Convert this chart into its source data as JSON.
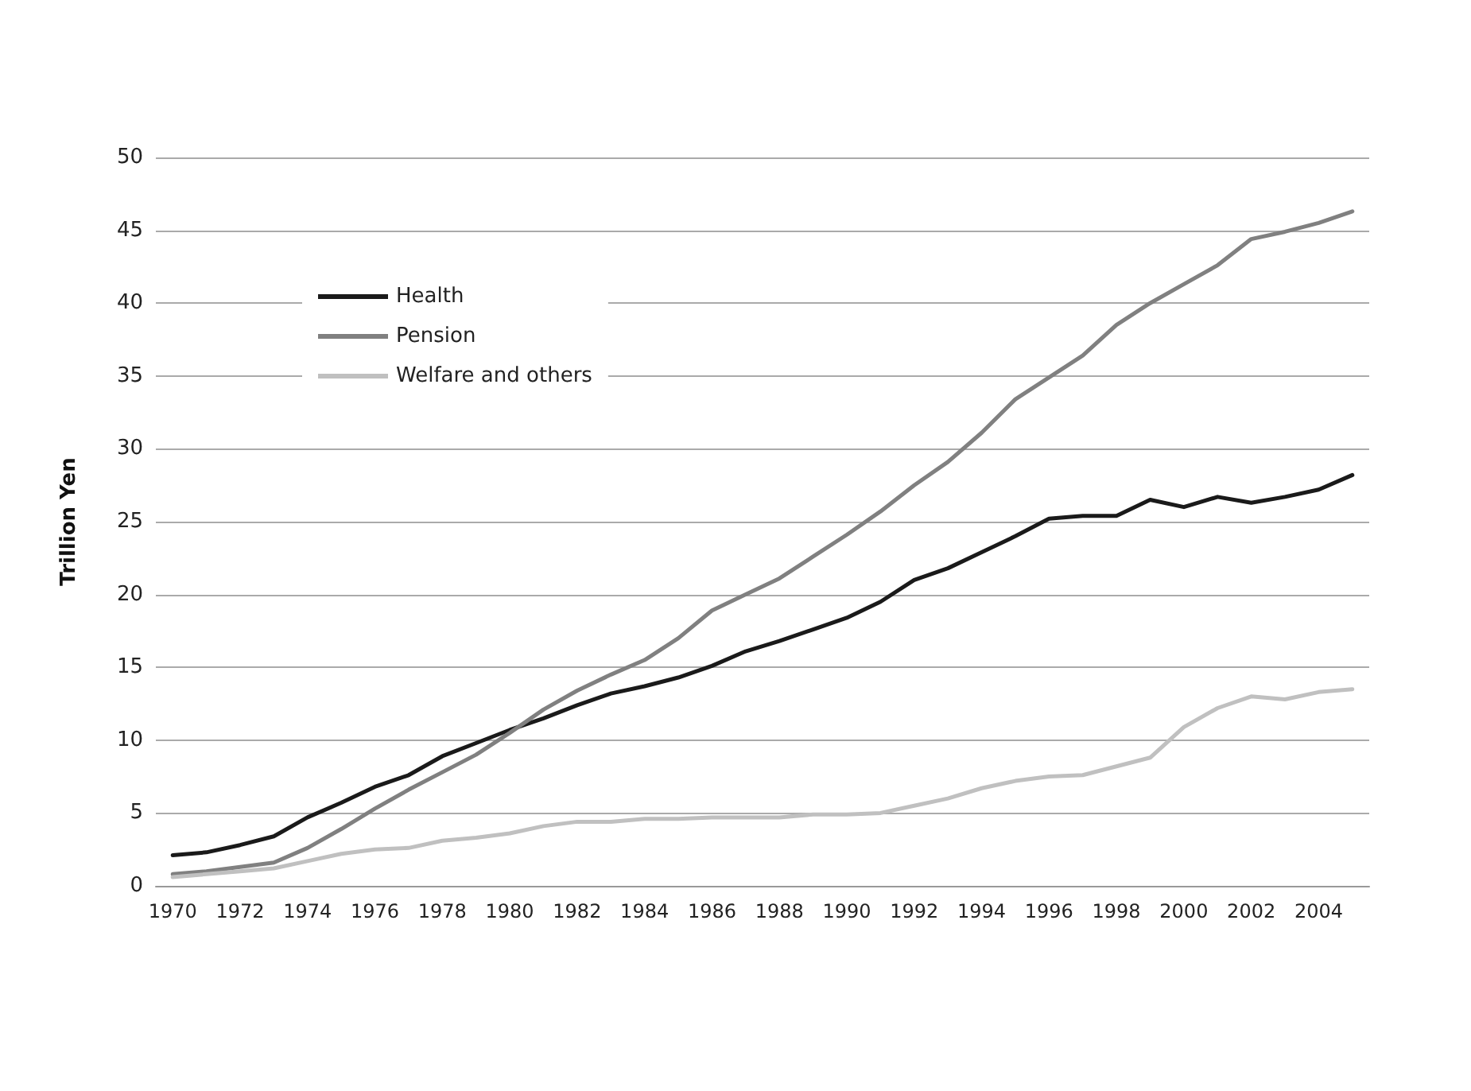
{
  "chart_data": {
    "type": "line",
    "ylabel": "Trillion Yen",
    "categories": [
      "1970",
      null,
      "1972",
      null,
      "1974",
      null,
      "1976",
      null,
      "1978",
      null,
      "1980",
      null,
      "1982",
      null,
      "1984",
      null,
      "1986",
      null,
      "1988",
      null,
      "1990",
      null,
      "1992",
      null,
      "1994",
      null,
      "1996",
      null,
      "1998",
      null,
      "2000",
      null,
      "2002",
      null,
      "2004",
      null
    ],
    "series": [
      {
        "name": "Health",
        "color": "#1a1a1a",
        "values": [
          2.1,
          2.3,
          2.8,
          3.4,
          4.7,
          5.7,
          6.8,
          7.6,
          8.9,
          9.8,
          10.7,
          11.5,
          12.4,
          13.2,
          13.7,
          14.3,
          15.1,
          16.1,
          16.8,
          17.6,
          18.4,
          19.5,
          21.0,
          21.8,
          22.9,
          24.0,
          25.2,
          25.4,
          25.4,
          26.5,
          26.0,
          26.7,
          26.3,
          26.7,
          27.2,
          28.2
        ]
      },
      {
        "name": "Pension",
        "color": "#808080",
        "values": [
          0.8,
          1.0,
          1.3,
          1.6,
          2.6,
          3.9,
          5.3,
          6.6,
          7.8,
          9.0,
          10.5,
          12.1,
          13.4,
          14.5,
          15.5,
          17.0,
          18.9,
          20.0,
          21.1,
          22.6,
          24.1,
          25.7,
          27.5,
          29.1,
          31.1,
          33.4,
          34.9,
          36.4,
          38.5,
          40.0,
          41.3,
          42.6,
          44.4,
          44.9,
          45.5,
          46.3
        ]
      },
      {
        "name": "Welfare and others",
        "color": "#c0c0c0",
        "values": [
          0.6,
          0.8,
          1.0,
          1.2,
          1.7,
          2.2,
          2.5,
          2.6,
          3.1,
          3.3,
          3.6,
          4.1,
          4.4,
          4.4,
          4.6,
          4.6,
          4.7,
          4.7,
          4.7,
          4.9,
          4.9,
          5.0,
          5.5,
          6.0,
          6.7,
          7.2,
          7.5,
          7.6,
          8.2,
          8.8,
          10.9,
          12.2,
          13.0,
          12.8,
          13.3,
          13.5
        ]
      }
    ],
    "ylim": [
      0,
      50
    ],
    "yticks": [
      0,
      5,
      10,
      15,
      20,
      25,
      30,
      35,
      40,
      45,
      50
    ],
    "grid": "y",
    "legend": "top left",
    "marker": "none",
    "line_style": "solid"
  }
}
